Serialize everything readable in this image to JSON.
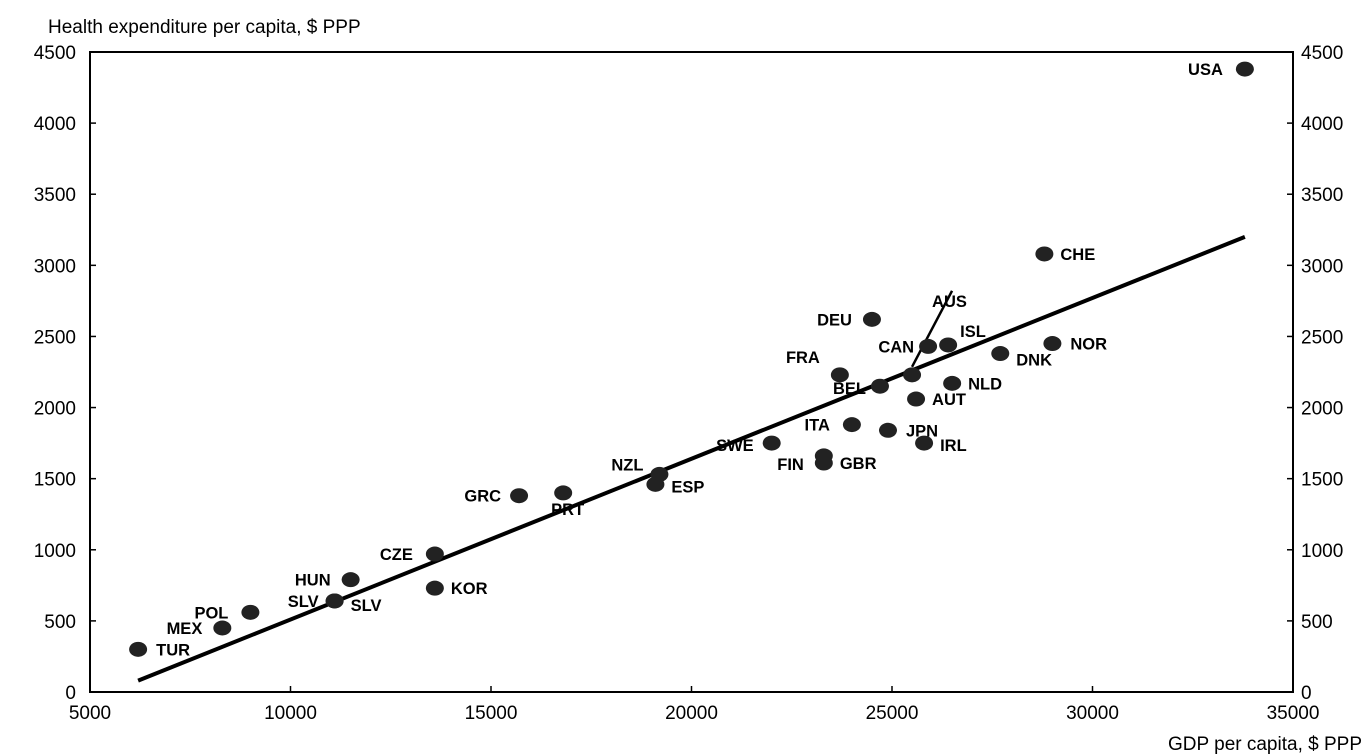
{
  "chart_data": {
    "type": "scatter",
    "ylabel": "Health expenditure per capita, $ PPP",
    "xlabel": "GDP per capita, $ PPP",
    "xlim": [
      5000,
      35000
    ],
    "ylim": [
      0,
      4500
    ],
    "x_ticks": [
      "5000",
      "10000",
      "15000",
      "20000",
      "25000",
      "30000",
      "35000"
    ],
    "y_ticks": [
      "0",
      "500",
      "1000",
      "1500",
      "2000",
      "2500",
      "3000",
      "3500",
      "4000",
      "4500"
    ],
    "grid": false,
    "legend": "none",
    "marker_color": "#222222",
    "points": [
      {
        "label": "USA",
        "x": 33800,
        "y": 4380
      },
      {
        "label": "CHE",
        "x": 28800,
        "y": 3080
      },
      {
        "label": "NOR",
        "x": 29000,
        "y": 2450
      },
      {
        "label": "DNK",
        "x": 27700,
        "y": 2380
      },
      {
        "label": "ISL",
        "x": 26400,
        "y": 2440
      },
      {
        "label": "CAN",
        "x": 25900,
        "y": 2430
      },
      {
        "label": "AUS",
        "x": 25500,
        "y": 2230
      },
      {
        "label": "DEU",
        "x": 24500,
        "y": 2620
      },
      {
        "label": "FRA",
        "x": 23700,
        "y": 2230
      },
      {
        "label": "BEL",
        "x": 24700,
        "y": 2150
      },
      {
        "label": "NLD",
        "x": 26500,
        "y": 2170
      },
      {
        "label": "AUT",
        "x": 25600,
        "y": 2060
      },
      {
        "label": "ITA",
        "x": 24000,
        "y": 1880
      },
      {
        "label": "JPN",
        "x": 24900,
        "y": 1840
      },
      {
        "label": "IRL",
        "x": 25800,
        "y": 1750
      },
      {
        "label": "SWE",
        "x": 22000,
        "y": 1750
      },
      {
        "label": "FIN",
        "x": 23300,
        "y": 1660
      },
      {
        "label": "GBR",
        "x": 23300,
        "y": 1610
      },
      {
        "label": "NZL",
        "x": 19200,
        "y": 1530
      },
      {
        "label": "ESP",
        "x": 19100,
        "y": 1460
      },
      {
        "label": "GRC",
        "x": 15700,
        "y": 1380
      },
      {
        "label": "PRT",
        "x": 16800,
        "y": 1400
      },
      {
        "label": "CZE",
        "x": 13600,
        "y": 970
      },
      {
        "label": "KOR",
        "x": 13600,
        "y": 730
      },
      {
        "label": "HUN",
        "x": 11500,
        "y": 790
      },
      {
        "label": "SLV",
        "x": 11100,
        "y": 640
      },
      {
        "label": "SLV",
        "x": 11100,
        "y": 640
      },
      {
        "label": "POL",
        "x": 9000,
        "y": 560
      },
      {
        "label": "MEX",
        "x": 8300,
        "y": 450
      },
      {
        "label": "TUR",
        "x": 6200,
        "y": 300
      }
    ],
    "trend_line": {
      "x": [
        6200,
        33800
      ],
      "y": [
        80,
        3200
      ]
    }
  }
}
